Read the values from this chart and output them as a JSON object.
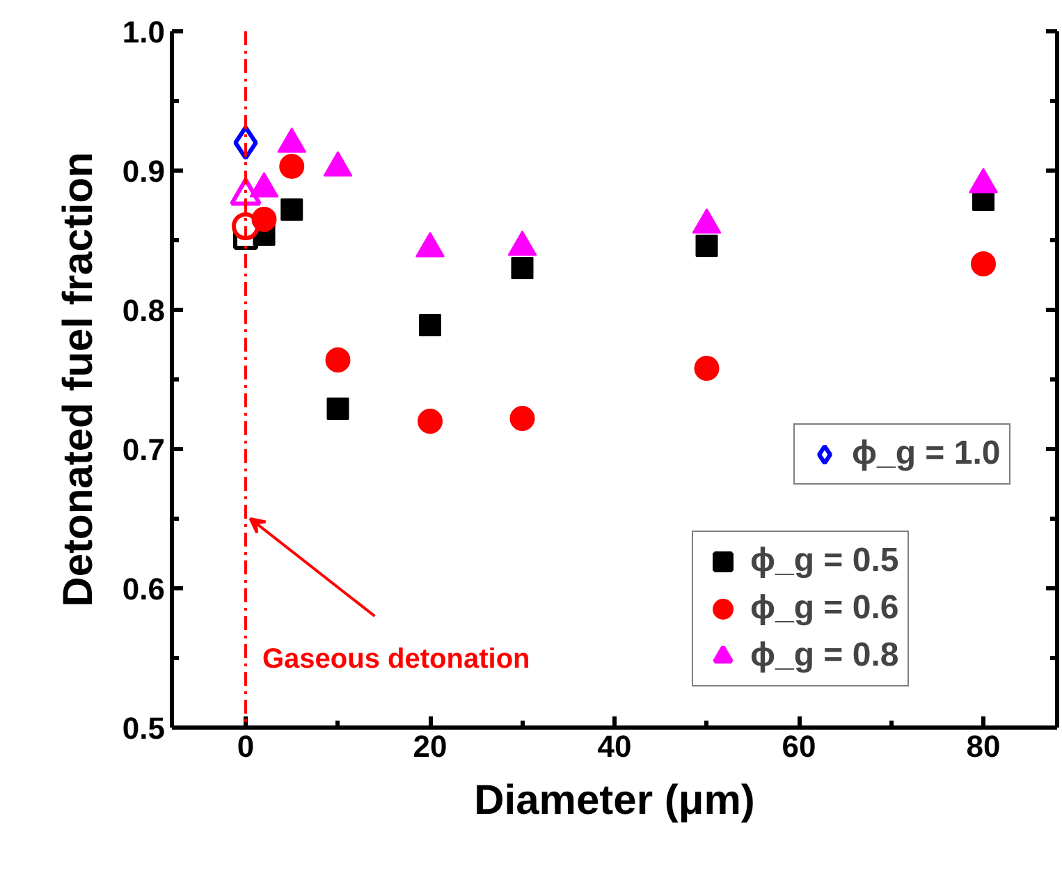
{
  "chart_data": {
    "type": "scatter",
    "xlabel": "Diameter (μm)",
    "ylabel": "Detonated fuel fraction",
    "xlim": [
      -8,
      88
    ],
    "ylim": [
      0.5,
      1.0
    ],
    "xticks": [
      0,
      20,
      40,
      60,
      80
    ],
    "yticks": [
      0.5,
      0.6,
      0.7,
      0.8,
      0.9,
      {
        "value": 1.0,
        "label": "1.0"
      }
    ],
    "legend": "bottom right",
    "grid": false,
    "series": [
      {
        "name": "ϕ_g = 1.0",
        "color": "#0000ff",
        "marker": "diamond",
        "x": [
          0
        ],
        "values": [
          0.92
        ]
      },
      {
        "color": "#000000",
        "marker": "square",
        "x": [
          0
        ],
        "values": [
          0.852
        ]
      },
      {
        "name": "ϕ_g = 0.5",
        "color": "#000000",
        "marker": "square",
        "x": [
          2,
          5,
          10,
          20,
          30,
          50,
          80
        ],
        "values": [
          0.854,
          0.872,
          0.729,
          0.789,
          0.83,
          0.846,
          0.879
        ]
      },
      {
        "color": "#ff0000",
        "marker": "circle",
        "x": [
          0
        ],
        "values": [
          0.86
        ]
      },
      {
        "name": "ϕ_g = 0.6",
        "color": "#ff0000",
        "marker": "circle",
        "x": [
          2,
          5,
          10,
          20,
          30,
          50,
          80
        ],
        "values": [
          0.865,
          0.903,
          0.764,
          0.72,
          0.722,
          0.758,
          0.833
        ]
      },
      {
        "color": "#ff00ff",
        "marker": "triangle",
        "x": [
          0
        ],
        "values": [
          0.882
        ]
      },
      {
        "name": "ϕ_g = 0.8",
        "color": "#ff00ff",
        "marker": "triangle",
        "x": [
          2,
          5,
          10,
          20,
          30,
          50,
          80
        ],
        "values": [
          0.887,
          0.919,
          0.902,
          0.844,
          0.845,
          0.861,
          0.89
        ]
      }
    ],
    "ref_lines": [
      {
        "axis": "x",
        "value": 0,
        "color": "#ff0000",
        "line_style": "dashdot"
      }
    ],
    "annotations": [
      {
        "text": "Gaseous detonation",
        "x": 0,
        "y": 0.65
      }
    ]
  }
}
